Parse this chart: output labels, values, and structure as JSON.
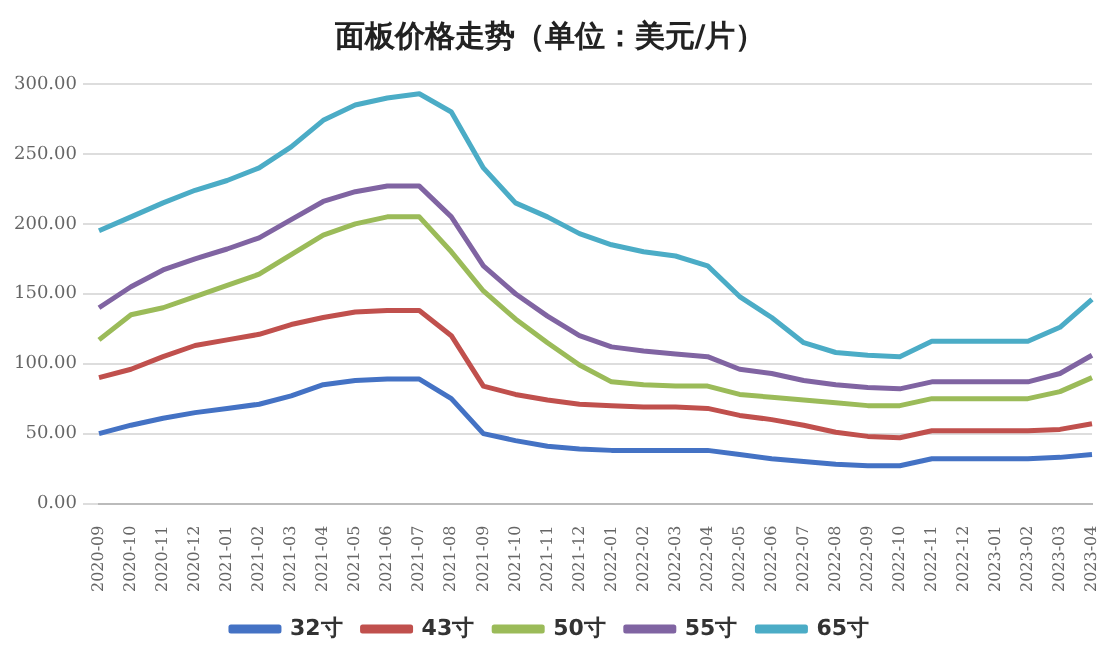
{
  "chart_data": {
    "type": "line",
    "title": "面板价格走势（单位：美元/片）",
    "categories": [
      "2020-09",
      "2020-10",
      "2020-11",
      "2020-12",
      "2021-01",
      "2021-02",
      "2021-03",
      "2021-04",
      "2021-05",
      "2021-06",
      "2021-07",
      "2021-08",
      "2021-09",
      "2021-10",
      "2021-11",
      "2021-12",
      "2022-01",
      "2022-02",
      "2022-03",
      "2022-04",
      "2022-05",
      "2022-06",
      "2022-07",
      "2022-08",
      "2022-09",
      "2022-10",
      "2022-11",
      "2022-12",
      "2023-01",
      "2023-02",
      "2023-03",
      "2023-04"
    ],
    "series": [
      {
        "name": "32寸",
        "color": "#4472c4",
        "values": [
          50,
          56,
          61,
          65,
          68,
          71,
          77,
          85,
          88,
          89,
          89,
          75,
          50,
          45,
          41,
          39,
          38,
          38,
          38,
          38,
          35,
          32,
          30,
          28,
          27,
          27,
          32,
          32,
          32,
          32,
          33,
          35
        ]
      },
      {
        "name": "43寸",
        "color": "#c0504d",
        "values": [
          90,
          96,
          105,
          113,
          117,
          121,
          128,
          133,
          137,
          138,
          138,
          120,
          84,
          78,
          74,
          71,
          70,
          69,
          69,
          68,
          63,
          60,
          56,
          51,
          48,
          47,
          52,
          52,
          52,
          52,
          53,
          57
        ]
      },
      {
        "name": "50寸",
        "color": "#9bbb59",
        "values": [
          117,
          135,
          140,
          148,
          156,
          164,
          178,
          192,
          200,
          205,
          205,
          180,
          152,
          132,
          115,
          99,
          87,
          85,
          84,
          84,
          78,
          76,
          74,
          72,
          70,
          70,
          75,
          75,
          75,
          75,
          80,
          90
        ]
      },
      {
        "name": "55寸",
        "color": "#8064a2",
        "values": [
          140,
          155,
          167,
          175,
          182,
          190,
          203,
          216,
          223,
          227,
          227,
          205,
          170,
          150,
          134,
          120,
          112,
          109,
          107,
          105,
          96,
          93,
          88,
          85,
          83,
          82,
          87,
          87,
          87,
          87,
          93,
          106
        ]
      },
      {
        "name": "65寸",
        "color": "#4bacc6",
        "values": [
          195,
          205,
          215,
          224,
          231,
          240,
          255,
          274,
          285,
          290,
          293,
          280,
          240,
          215,
          205,
          193,
          185,
          180,
          177,
          170,
          148,
          133,
          115,
          108,
          106,
          105,
          116,
          116,
          116,
          116,
          126,
          146
        ]
      }
    ],
    "ylim": [
      0,
      300
    ],
    "yticks": [
      {
        "value": 0,
        "label": "0.00"
      },
      {
        "value": 50,
        "label": "50.00"
      },
      {
        "value": 100,
        "label": "100.00"
      },
      {
        "value": 150,
        "label": "150.00"
      },
      {
        "value": 200,
        "label": "200.00"
      },
      {
        "value": 250,
        "label": "250.00"
      },
      {
        "value": 300,
        "label": "300.00"
      }
    ],
    "grid": "y",
    "legend": "bottom",
    "marker": "none",
    "line_style": "solid"
  }
}
